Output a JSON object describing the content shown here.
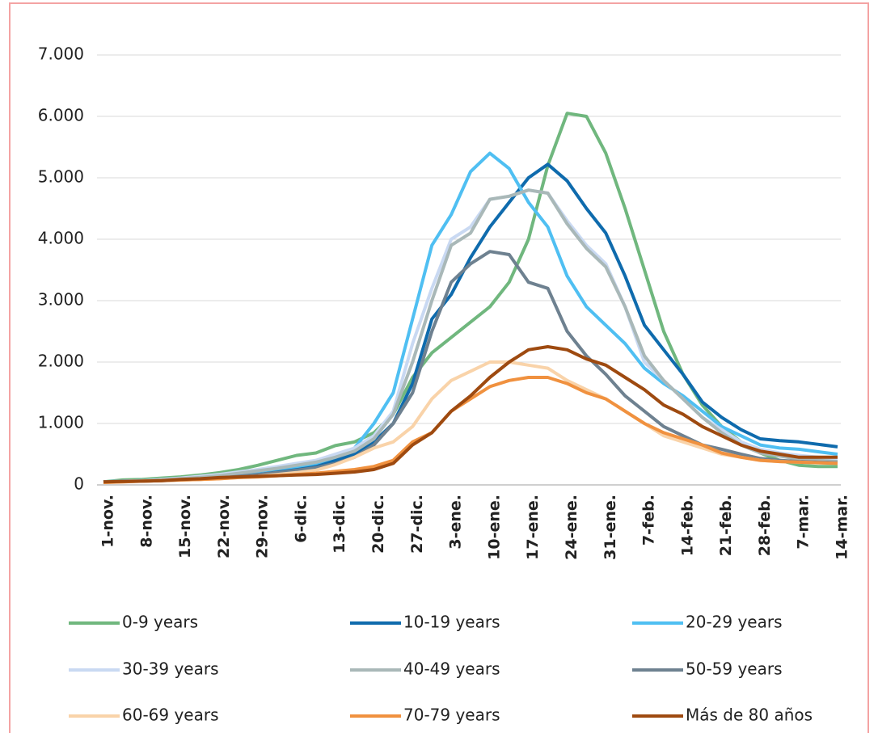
{
  "chart_data": {
    "type": "line",
    "x": [
      "1-nov.",
      null,
      "8-nov.",
      null,
      "15-nov.",
      null,
      "22-nov.",
      null,
      "29-nov.",
      null,
      "6-dic.",
      null,
      "13-dic.",
      null,
      "20-dic.",
      null,
      "27-dic.",
      null,
      "3-ene.",
      null,
      "10-ene.",
      null,
      "17-ene.",
      null,
      "24-ene.",
      null,
      "31-ene.",
      null,
      "7-feb.",
      null,
      "14-feb.",
      null,
      "21-feb.",
      null,
      "28-feb.",
      null,
      "7-mar.",
      null,
      "14-mar."
    ],
    "ylim": [
      0,
      7000
    ],
    "yticks": [
      0,
      {
        "value": 1000,
        "label": "1.000"
      },
      {
        "value": 2000,
        "label": "2.000"
      },
      {
        "value": 3000,
        "label": "3.000"
      },
      {
        "value": 4000,
        "label": "4.000"
      },
      {
        "value": 5000,
        "label": "5.000"
      },
      {
        "value": 6000,
        "label": "6.000"
      },
      {
        "value": 7000,
        "label": "7.000"
      }
    ],
    "grid": true,
    "legend": "bottom",
    "series": [
      {
        "name": "0-9 years",
        "color": "#70b77e",
        "values": [
          50,
          80,
          90,
          110,
          130,
          160,
          200,
          250,
          320,
          400,
          480,
          520,
          640,
          700,
          850,
          1150,
          1750,
          2150,
          2400,
          2650,
          2900,
          3300,
          4000,
          5200,
          6050,
          6000,
          5400,
          4500,
          3500,
          2500,
          1800,
          1300,
          950,
          700,
          520,
          400,
          320,
          300,
          300
        ]
      },
      {
        "name": "10-19 years",
        "color": "#0f6bad",
        "values": [
          50,
          60,
          70,
          80,
          100,
          120,
          150,
          180,
          200,
          230,
          260,
          300,
          400,
          500,
          700,
          1000,
          1650,
          2700,
          3100,
          3700,
          4200,
          4600,
          5000,
          5220,
          4950,
          4500,
          4100,
          3400,
          2600,
          2200,
          1800,
          1350,
          1100,
          900,
          750,
          720,
          700,
          660,
          620
        ]
      },
      {
        "name": "20-29 years",
        "color": "#4fbff2",
        "values": [
          50,
          60,
          70,
          90,
          110,
          130,
          160,
          190,
          220,
          260,
          300,
          350,
          450,
          600,
          1000,
          1500,
          2700,
          3900,
          4400,
          5100,
          5400,
          5150,
          4600,
          4200,
          3400,
          2900,
          2600,
          2300,
          1900,
          1650,
          1450,
          1200,
          950,
          800,
          650,
          600,
          580,
          540,
          500
        ]
      },
      {
        "name": "30-39 years",
        "color": "#c9d9f2",
        "values": [
          50,
          60,
          70,
          90,
          110,
          140,
          170,
          210,
          250,
          300,
          350,
          400,
          500,
          600,
          800,
          1200,
          2300,
          3200,
          4000,
          4200,
          4650,
          4700,
          4800,
          4750,
          4300,
          3900,
          3600,
          2900,
          2000,
          1700,
          1400,
          1100,
          900,
          700,
          580,
          520,
          480,
          450,
          430
        ]
      },
      {
        "name": "40-49 years",
        "color": "#a9b8b8",
        "values": [
          50,
          60,
          70,
          80,
          100,
          120,
          150,
          190,
          230,
          270,
          320,
          370,
          450,
          550,
          750,
          1150,
          2000,
          3000,
          3900,
          4100,
          4650,
          4700,
          4800,
          4750,
          4250,
          3850,
          3550,
          2900,
          2100,
          1700,
          1400,
          1100,
          850,
          650,
          520,
          470,
          420,
          400,
          380
        ]
      },
      {
        "name": "50-59 years",
        "color": "#6e8190",
        "values": [
          50,
          55,
          60,
          70,
          80,
          90,
          110,
          140,
          170,
          200,
          240,
          280,
          350,
          450,
          650,
          1000,
          1500,
          2500,
          3300,
          3600,
          3800,
          3750,
          3300,
          3200,
          2500,
          2100,
          1800,
          1450,
          1200,
          950,
          800,
          650,
          580,
          500,
          430,
          400,
          380,
          370,
          360
        ]
      },
      {
        "name": "60-69 years",
        "color": "#f9d3a9",
        "values": [
          40,
          50,
          60,
          70,
          80,
          90,
          100,
          120,
          140,
          170,
          200,
          240,
          330,
          450,
          600,
          700,
          950,
          1400,
          1700,
          1850,
          2000,
          2000,
          1950,
          1900,
          1700,
          1550,
          1400,
          1200,
          1000,
          800,
          700,
          600,
          500,
          450,
          400,
          380,
          370,
          360,
          350
        ]
      },
      {
        "name": "70-79 years",
        "color": "#f0913f",
        "values": [
          40,
          50,
          60,
          70,
          80,
          90,
          100,
          120,
          130,
          150,
          170,
          190,
          220,
          250,
          300,
          400,
          700,
          850,
          1200,
          1400,
          1600,
          1700,
          1750,
          1750,
          1650,
          1500,
          1400,
          1200,
          1000,
          850,
          750,
          650,
          520,
          450,
          400,
          380,
          370,
          360,
          350
        ]
      },
      {
        "name": "Más de 80 años",
        "color": "#9e4a10",
        "values": [
          50,
          55,
          60,
          70,
          90,
          100,
          120,
          130,
          140,
          150,
          160,
          170,
          190,
          210,
          250,
          350,
          650,
          850,
          1200,
          1450,
          1750,
          2000,
          2200,
          2250,
          2200,
          2050,
          1950,
          1750,
          1550,
          1300,
          1150,
          950,
          800,
          650,
          550,
          500,
          450,
          450,
          450
        ]
      }
    ]
  }
}
